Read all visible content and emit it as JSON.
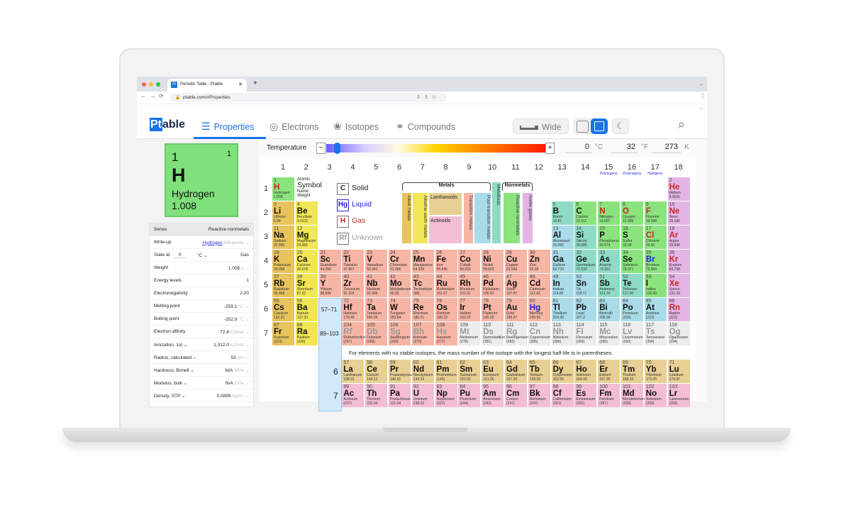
{
  "browser": {
    "tab_title": "Periodic Table - Ptable",
    "url": "ptable.com/#Properties",
    "favicon": "Pt"
  },
  "app": {
    "logo_pt": "Pt",
    "logo_rest": "able",
    "nav": [
      {
        "label": "Properties",
        "icon": "list-icon"
      },
      {
        "label": "Electrons",
        "icon": "atom-icon"
      },
      {
        "label": "Isotopes",
        "icon": "nucleus-icon"
      },
      {
        "label": "Compounds",
        "icon": "molecule-icon"
      }
    ],
    "wide_label": "Wide",
    "active_nav": "Properties"
  },
  "temperature": {
    "label": "Temperature",
    "minus": "−",
    "plus": "+",
    "celsius": "0",
    "fahrenheit": "32",
    "kelvin": "273",
    "unit_c": "°C",
    "unit_f": "°F",
    "unit_k": "K",
    "slider_fraction": 0.05
  },
  "selected": {
    "number": "1",
    "shells": "1",
    "symbol": "H",
    "name": "Hydrogen",
    "weight": "1.008",
    "color": "#7fe07c"
  },
  "properties": {
    "series_label": "Series",
    "series_value": "Reactive nonmetals",
    "rows": [
      {
        "label": "Write-up",
        "value": "Hydrogen",
        "unit": "Wikipedia ⌄"
      },
      {
        "label": "State at",
        "value": "Gas",
        "unit": "",
        "temp": "0",
        "temp_unit": "°C ⌄"
      },
      {
        "label": "Weight",
        "value": "1.008",
        "unit": "u ⌄"
      },
      {
        "label": "Energy levels",
        "value": "1",
        "unit": ""
      },
      {
        "label": "Electronegativity",
        "value": "2.20",
        "unit": ""
      },
      {
        "label": "Melting point",
        "value": "-259.1",
        "unit": "°C ⌄"
      },
      {
        "label": "Boiling point",
        "value": "-252.9",
        "unit": "°C ⌄"
      },
      {
        "label": "Electron affinity",
        "value": "72.8",
        "unit": "kJ/mol ⌄"
      },
      {
        "label": "Ionization, 1st  ⌄",
        "value": "1,312.0",
        "unit": "kJ/mol ⌄"
      },
      {
        "label": "Radius, calculated   ⌄",
        "value": "53",
        "unit": "pm ⌄"
      },
      {
        "label": "Hardness, Brinell  ⌄",
        "value": "N/A",
        "unit": "MPa ⌄"
      },
      {
        "label": "Modulus, bulk  ⌄",
        "value": "N/A",
        "unit": "GPa ⌄"
      },
      {
        "label": "Density, STP  ⌄",
        "value": "0.0899",
        "unit": "kg/m³ ⌄"
      }
    ]
  },
  "table": {
    "groups": [
      "1",
      "2",
      "3",
      "4",
      "5",
      "6",
      "7",
      "8",
      "9",
      "10",
      "11",
      "12",
      "13",
      "14",
      "15",
      "16",
      "17",
      "18"
    ],
    "group_names": {
      "15": "Pnictogens",
      "16": "Chalcogens",
      "17": "Halogens"
    },
    "periods": [
      "1",
      "2",
      "3",
      "4",
      "5",
      "6",
      "7"
    ],
    "lanth_ref": "57–71",
    "act_ref": "89–103",
    "lanth_period": "6",
    "act_period": "7",
    "key": {
      "atomic": "Atomic",
      "symbol": "Symbol",
      "name": "Name",
      "weight": "Weight"
    },
    "states": [
      {
        "box": "C",
        "label": "Solid",
        "color": "#222"
      },
      {
        "box": "Hg",
        "label": "Liquid",
        "color": "#2222cc"
      },
      {
        "box": "H",
        "label": "Gas",
        "color": "#c62828"
      },
      {
        "box": "Rf",
        "label": "Unknown",
        "color": "#999"
      }
    ],
    "categories": {
      "metals": "Metals",
      "nonmetals": "Nonmetals",
      "alkali": "Alkali metals",
      "alkaline": "Alkaline earth metals",
      "lanthanoids": "Lanthanoids",
      "actinoids": "Actinoids",
      "transition": "Transition metals",
      "post": "Post-transition metals",
      "metalloids": "Metalloids",
      "reactive": "Reactive nonmetals",
      "noble": "Noble gases"
    },
    "colors": {
      "a": "#e8c45e",
      "e": "#f1e656",
      "t": "#f6b5a5",
      "p": "#a9dbe9",
      "m": "#8fdbc6",
      "n": "#8be37e",
      "g": "#e3b5e5",
      "l": "#e8cf93",
      "c": "#f3bdd6",
      "u": "#ececec"
    },
    "footnote": "For elements with no stable isotopes, the mass number of the isotope with the longest half-life is in parentheses."
  },
  "elements": [
    [
      1,
      "H",
      "Hydrogen",
      "1.008",
      "n",
      "gas"
    ],
    [
      2,
      "He",
      "Helium",
      "4.0026",
      "g",
      "gas"
    ],
    [
      3,
      "Li",
      "Lithium",
      "6.94",
      "a",
      "s"
    ],
    [
      4,
      "Be",
      "Beryllium",
      "9.0122",
      "e",
      "s"
    ],
    [
      5,
      "B",
      "Boron",
      "10.81",
      "m",
      "s"
    ],
    [
      6,
      "C",
      "Carbon",
      "12.011",
      "n",
      "s"
    ],
    [
      7,
      "N",
      "Nitrogen",
      "14.007",
      "n",
      "gas"
    ],
    [
      8,
      "O",
      "Oxygen",
      "15.999",
      "n",
      "gas"
    ],
    [
      9,
      "F",
      "Fluorine",
      "18.998",
      "n",
      "gas"
    ],
    [
      10,
      "Ne",
      "Neon",
      "20.180",
      "g",
      "gas"
    ],
    [
      11,
      "Na",
      "Sodium",
      "22.990",
      "a",
      "s"
    ],
    [
      12,
      "Mg",
      "Magnesium",
      "24.305",
      "e",
      "s"
    ],
    [
      13,
      "Al",
      "Aluminium",
      "26.982",
      "p",
      "s"
    ],
    [
      14,
      "Si",
      "Silicon",
      "28.085",
      "m",
      "s"
    ],
    [
      15,
      "P",
      "Phosphorus",
      "30.974",
      "n",
      "s"
    ],
    [
      16,
      "S",
      "Sulfur",
      "32.06",
      "n",
      "s"
    ],
    [
      17,
      "Cl",
      "Chlorine",
      "35.45",
      "n",
      "gas"
    ],
    [
      18,
      "Ar",
      "Argon",
      "39.948",
      "g",
      "gas"
    ],
    [
      19,
      "K",
      "Potassium",
      "39.098",
      "a",
      "s"
    ],
    [
      20,
      "Ca",
      "Calcium",
      "40.078",
      "e",
      "s"
    ],
    [
      21,
      "Sc",
      "Scandium",
      "44.956",
      "t",
      "s"
    ],
    [
      22,
      "Ti",
      "Titanium",
      "47.867",
      "t",
      "s"
    ],
    [
      23,
      "V",
      "Vanadium",
      "50.942",
      "t",
      "s"
    ],
    [
      24,
      "Cr",
      "Chromium",
      "51.996",
      "t",
      "s"
    ],
    [
      25,
      "Mn",
      "Manganese",
      "54.938",
      "t",
      "s"
    ],
    [
      26,
      "Fe",
      "Iron",
      "55.845",
      "t",
      "s"
    ],
    [
      27,
      "Co",
      "Cobalt",
      "58.933",
      "t",
      "s"
    ],
    [
      28,
      "Ni",
      "Nickel",
      "58.693",
      "t",
      "s"
    ],
    [
      29,
      "Cu",
      "Copper",
      "63.546",
      "t",
      "s"
    ],
    [
      30,
      "Zn",
      "Zinc",
      "65.38",
      "t",
      "s"
    ],
    [
      31,
      "Ga",
      "Gallium",
      "69.723",
      "p",
      "s"
    ],
    [
      32,
      "Ge",
      "Germanium",
      "72.630",
      "m",
      "s"
    ],
    [
      33,
      "As",
      "Arsenic",
      "74.922",
      "m",
      "s"
    ],
    [
      34,
      "Se",
      "Selenium",
      "78.971",
      "n",
      "s"
    ],
    [
      35,
      "Br",
      "Bromine",
      "79.904",
      "n",
      "liq"
    ],
    [
      36,
      "Kr",
      "Krypton",
      "83.798",
      "g",
      "gas"
    ],
    [
      37,
      "Rb",
      "Rubidium",
      "85.468",
      "a",
      "s"
    ],
    [
      38,
      "Sr",
      "Strontium",
      "87.62",
      "e",
      "s"
    ],
    [
      39,
      "Y",
      "Yttrium",
      "88.906",
      "t",
      "s"
    ],
    [
      40,
      "Zr",
      "Zirconium",
      "91.224",
      "t",
      "s"
    ],
    [
      41,
      "Nb",
      "Niobium",
      "92.906",
      "t",
      "s"
    ],
    [
      42,
      "Mo",
      "Molybdenum",
      "95.95",
      "t",
      "s"
    ],
    [
      43,
      "Tc",
      "Technetium",
      "(98)",
      "t",
      "s"
    ],
    [
      44,
      "Ru",
      "Ruthenium",
      "101.07",
      "t",
      "s"
    ],
    [
      45,
      "Rh",
      "Rhodium",
      "102.91",
      "t",
      "s"
    ],
    [
      46,
      "Pd",
      "Palladium",
      "106.42",
      "t",
      "s"
    ],
    [
      47,
      "Ag",
      "Silver",
      "107.87",
      "t",
      "s"
    ],
    [
      48,
      "Cd",
      "Cadmium",
      "112.41",
      "t",
      "s"
    ],
    [
      49,
      "In",
      "Indium",
      "114.82",
      "p",
      "s"
    ],
    [
      50,
      "Sn",
      "Tin",
      "118.71",
      "p",
      "s"
    ],
    [
      51,
      "Sb",
      "Antimony",
      "121.76",
      "m",
      "s"
    ],
    [
      52,
      "Te",
      "Tellurium",
      "127.60",
      "m",
      "s"
    ],
    [
      53,
      "I",
      "Iodine",
      "126.90",
      "n",
      "s"
    ],
    [
      54,
      "Xe",
      "Xenon",
      "131.29",
      "g",
      "gas"
    ],
    [
      55,
      "Cs",
      "Caesium",
      "132.91",
      "a",
      "s"
    ],
    [
      56,
      "Ba",
      "Barium",
      "137.33",
      "e",
      "s"
    ],
    [
      57,
      "La",
      "Lanthanum",
      "138.91",
      "l",
      "s"
    ],
    [
      58,
      "Ce",
      "Cerium",
      "140.12",
      "l",
      "s"
    ],
    [
      59,
      "Pr",
      "Praseodymium",
      "140.91",
      "l",
      "s"
    ],
    [
      60,
      "Nd",
      "Neodymium",
      "144.24",
      "l",
      "s"
    ],
    [
      61,
      "Pm",
      "Promethium",
      "(145)",
      "l",
      "s"
    ],
    [
      62,
      "Sm",
      "Samarium",
      "150.36",
      "l",
      "s"
    ],
    [
      63,
      "Eu",
      "Europium",
      "151.96",
      "l",
      "s"
    ],
    [
      64,
      "Gd",
      "Gadolinium",
      "157.25",
      "l",
      "s"
    ],
    [
      65,
      "Tb",
      "Terbium",
      "158.93",
      "l",
      "s"
    ],
    [
      66,
      "Dy",
      "Dysprosium",
      "162.50",
      "l",
      "s"
    ],
    [
      67,
      "Ho",
      "Holmium",
      "164.93",
      "l",
      "s"
    ],
    [
      68,
      "Er",
      "Erbium",
      "167.26",
      "l",
      "s"
    ],
    [
      69,
      "Tm",
      "Thulium",
      "168.93",
      "l",
      "s"
    ],
    [
      70,
      "Yb",
      "Ytterbium",
      "173.05",
      "l",
      "s"
    ],
    [
      71,
      "Lu",
      "Lutetium",
      "174.97",
      "l",
      "s"
    ],
    [
      72,
      "Hf",
      "Hafnium",
      "178.49",
      "t",
      "s"
    ],
    [
      73,
      "Ta",
      "Tantalum",
      "180.95",
      "t",
      "s"
    ],
    [
      74,
      "W",
      "Tungsten",
      "183.84",
      "t",
      "s"
    ],
    [
      75,
      "Re",
      "Rhenium",
      "186.21",
      "t",
      "s"
    ],
    [
      76,
      "Os",
      "Osmium",
      "190.23",
      "t",
      "s"
    ],
    [
      77,
      "Ir",
      "Iridium",
      "192.22",
      "t",
      "s"
    ],
    [
      78,
      "Pt",
      "Platinum",
      "195.08",
      "t",
      "s"
    ],
    [
      79,
      "Au",
      "Gold",
      "196.97",
      "t",
      "s"
    ],
    [
      80,
      "Hg",
      "Mercury",
      "200.59",
      "t",
      "liq"
    ],
    [
      81,
      "Tl",
      "Thallium",
      "204.38",
      "p",
      "s"
    ],
    [
      82,
      "Pb",
      "Lead",
      "207.2",
      "p",
      "s"
    ],
    [
      83,
      "Bi",
      "Bismuth",
      "208.98",
      "p",
      "s"
    ],
    [
      84,
      "Po",
      "Polonium",
      "(209)",
      "p",
      "s"
    ],
    [
      85,
      "At",
      "Astatine",
      "(210)",
      "p",
      "s"
    ],
    [
      86,
      "Rn",
      "Radon",
      "(222)",
      "g",
      "gas"
    ],
    [
      87,
      "Fr",
      "Francium",
      "(223)",
      "a",
      "s"
    ],
    [
      88,
      "Ra",
      "Radium",
      "(226)",
      "e",
      "s"
    ],
    [
      89,
      "Ac",
      "Actinium",
      "(227)",
      "c",
      "s"
    ],
    [
      90,
      "Th",
      "Thorium",
      "232.04",
      "c",
      "s"
    ],
    [
      91,
      "Pa",
      "Protactinium",
      "231.04",
      "c",
      "s"
    ],
    [
      92,
      "U",
      "Uranium",
      "238.03",
      "c",
      "s"
    ],
    [
      93,
      "Np",
      "Neptunium",
      "(237)",
      "c",
      "s"
    ],
    [
      94,
      "Pu",
      "Plutonium",
      "(244)",
      "c",
      "s"
    ],
    [
      95,
      "Am",
      "Americium",
      "(243)",
      "c",
      "s"
    ],
    [
      96,
      "Cm",
      "Curium",
      "(247)",
      "c",
      "s"
    ],
    [
      97,
      "Bk",
      "Berkelium",
      "(247)",
      "c",
      "s"
    ],
    [
      98,
      "Cf",
      "Californium",
      "(251)",
      "c",
      "s"
    ],
    [
      99,
      "Es",
      "Einsteinium",
      "(252)",
      "c",
      "s"
    ],
    [
      100,
      "Fm",
      "Fermium",
      "(257)",
      "c",
      "s"
    ],
    [
      101,
      "Md",
      "Mendelevium",
      "(258)",
      "c",
      "s"
    ],
    [
      102,
      "No",
      "Nobelium",
      "(259)",
      "c",
      "s"
    ],
    [
      103,
      "Lr",
      "Lawrencium",
      "(266)",
      "c",
      "s"
    ],
    [
      104,
      "Rf",
      "Rutherfordium",
      "(267)",
      "t",
      "unk"
    ],
    [
      105,
      "Db",
      "Dubnium",
      "(268)",
      "t",
      "unk"
    ],
    [
      106,
      "Sg",
      "Seaborgium",
      "(269)",
      "t",
      "unk"
    ],
    [
      107,
      "Bh",
      "Bohrium",
      "(270)",
      "t",
      "unk"
    ],
    [
      108,
      "Hs",
      "Hassium",
      "(277)",
      "t",
      "unk"
    ],
    [
      109,
      "Mt",
      "Meitnerium",
      "(278)",
      "u",
      "unk"
    ],
    [
      110,
      "Ds",
      "Darmstadtium",
      "(281)",
      "u",
      "unk"
    ],
    [
      111,
      "Rg",
      "Roentgenium",
      "(282)",
      "u",
      "unk"
    ],
    [
      112,
      "Cn",
      "Copernicium",
      "(285)",
      "u",
      "unk"
    ],
    [
      113,
      "Nh",
      "Nihonium",
      "(286)",
      "u",
      "unk"
    ],
    [
      114,
      "Fl",
      "Flerovium",
      "(289)",
      "u",
      "unk"
    ],
    [
      115,
      "Mc",
      "Moscovium",
      "(290)",
      "u",
      "unk"
    ],
    [
      116,
      "Lv",
      "Livermorium",
      "(293)",
      "u",
      "unk"
    ],
    [
      117,
      "Ts",
      "Tennessine",
      "(294)",
      "u",
      "unk"
    ],
    [
      118,
      "Og",
      "Oganesson",
      "(294)",
      "u",
      "unk"
    ]
  ]
}
